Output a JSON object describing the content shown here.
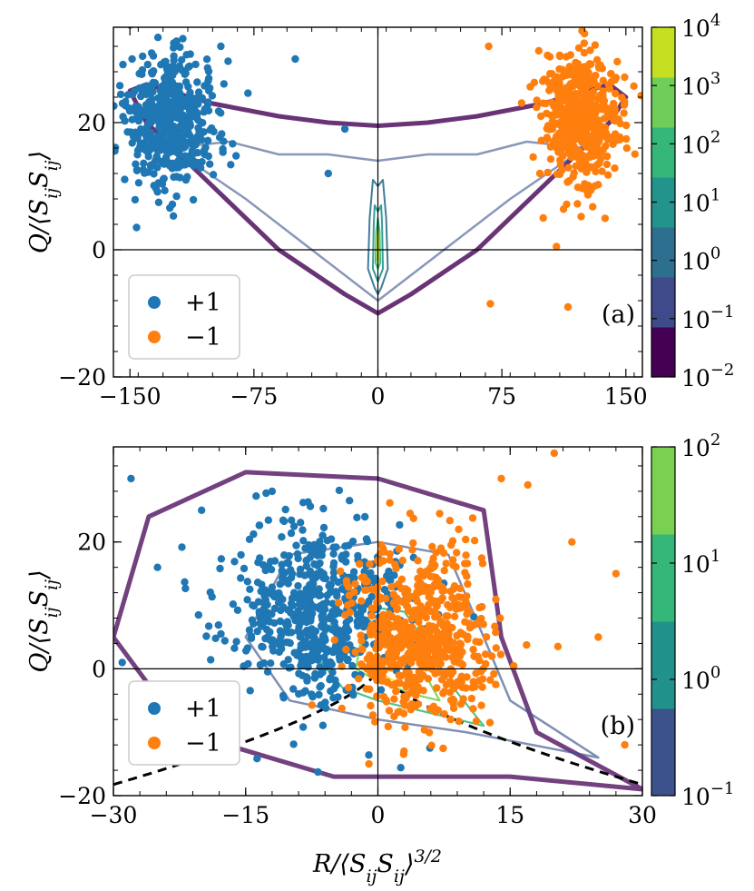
{
  "chart_data": [
    {
      "type": "scatter",
      "panel_tag": "(a)",
      "xlim": [
        -160,
        160
      ],
      "ylim": [
        -20,
        35
      ],
      "xticks": [
        {
          "value": -150,
          "label": "−150"
        },
        {
          "value": -75,
          "label": "−75"
        },
        {
          "value": 0,
          "label": "0"
        },
        {
          "value": 75,
          "label": "75"
        },
        {
          "value": 150,
          "label": "150"
        }
      ],
      "yticks": [
        {
          "value": -20,
          "label": "−20"
        },
        {
          "value": 0,
          "label": "0"
        },
        {
          "value": 20,
          "label": "20"
        }
      ],
      "ylabel": "Q/⟨SijSij⟩",
      "xlabel": "",
      "legend": {
        "placement": "bottom-left",
        "entries": [
          {
            "label": "+1",
            "color": "#1f77b4"
          },
          {
            "label": "−1",
            "color": "#ff7f0e"
          }
        ]
      },
      "colorbar": {
        "scale": "log",
        "labels": [
          {
            "base": "10",
            "exp": "4"
          },
          {
            "base": "10",
            "exp": "3"
          },
          {
            "base": "10",
            "exp": "2"
          },
          {
            "base": "10",
            "exp": "1"
          },
          {
            "base": "10",
            "exp": "0"
          },
          {
            "base": "10",
            "exp": "−1"
          },
          {
            "base": "10",
            "exp": "−2"
          }
        ],
        "colors": [
          "#440154",
          "#3f4a8a",
          "#2d6f8e",
          "#22948b",
          "#35b779",
          "#6ece58",
          "#c5e021"
        ]
      },
      "series": [
        {
          "name": "+1",
          "color": "#1f77b4",
          "center": [
            -125,
            20
          ],
          "spread": [
            14,
            5
          ],
          "count": 520,
          "outliers": [
            [
              -165,
              35
            ],
            [
              -95,
              32
            ],
            [
              -50,
              30
            ],
            [
              -20,
              19
            ],
            [
              -30,
              12
            ]
          ]
        },
        {
          "name": "−1",
          "color": "#ff7f0e",
          "center": [
            122,
            21
          ],
          "spread": [
            12,
            5
          ],
          "count": 520,
          "outliers": [
            [
              67,
              32
            ],
            [
              98,
              12
            ],
            [
              100,
              5
            ],
            [
              115,
              -9
            ],
            [
              68,
              -8.5
            ],
            [
              108,
              0.5
            ],
            [
              125,
              34
            ]
          ]
        }
      ]
    },
    {
      "type": "scatter",
      "panel_tag": "(b)",
      "xlim": [
        -30,
        30
      ],
      "ylim": [
        -20,
        35
      ],
      "xticks": [
        {
          "value": -30,
          "label": "−30"
        },
        {
          "value": -15,
          "label": "−15"
        },
        {
          "value": 0,
          "label": "0"
        },
        {
          "value": 15,
          "label": "15"
        },
        {
          "value": 30,
          "label": "30"
        }
      ],
      "yticks": [
        {
          "value": -20,
          "label": "−20"
        },
        {
          "value": 0,
          "label": "0"
        },
        {
          "value": 20,
          "label": "20"
        }
      ],
      "ylabel": "Q/⟨SijSij⟩",
      "xlabel": "R/⟨SijSij⟩3/2",
      "legend": {
        "placement": "bottom-left",
        "entries": [
          {
            "label": "+1",
            "color": "#1f77b4"
          },
          {
            "label": "−1",
            "color": "#ff7f0e"
          }
        ]
      },
      "colorbar": {
        "scale": "log",
        "labels": [
          {
            "base": "10",
            "exp": "2"
          },
          {
            "base": "10",
            "exp": "1"
          },
          {
            "base": "10",
            "exp": "0"
          },
          {
            "base": "10",
            "exp": "−1"
          }
        ],
        "colors": [
          "#3b528b",
          "#21918c",
          "#35b779",
          "#7ad151"
        ]
      },
      "series": [
        {
          "name": "+1",
          "color": "#1f77b4",
          "center": [
            -7,
            9
          ],
          "spread": [
            5,
            7
          ],
          "count": 620,
          "outliers": [
            [
              -28,
              30
            ],
            [
              -25,
              16
            ],
            [
              -29,
              1
            ],
            [
              -20,
              25
            ],
            [
              -12,
              28
            ]
          ]
        },
        {
          "name": "−1",
          "color": "#ff7f0e",
          "center": [
            5,
            5
          ],
          "spread": [
            4,
            7
          ],
          "count": 620,
          "outliers": [
            [
              14,
              30
            ],
            [
              20,
              34
            ],
            [
              22,
              20
            ],
            [
              25,
              5
            ],
            [
              27,
              15
            ],
            [
              17,
              29
            ],
            [
              28,
              -12
            ]
          ]
        }
      ],
      "dashed_curve": "discriminant"
    }
  ]
}
